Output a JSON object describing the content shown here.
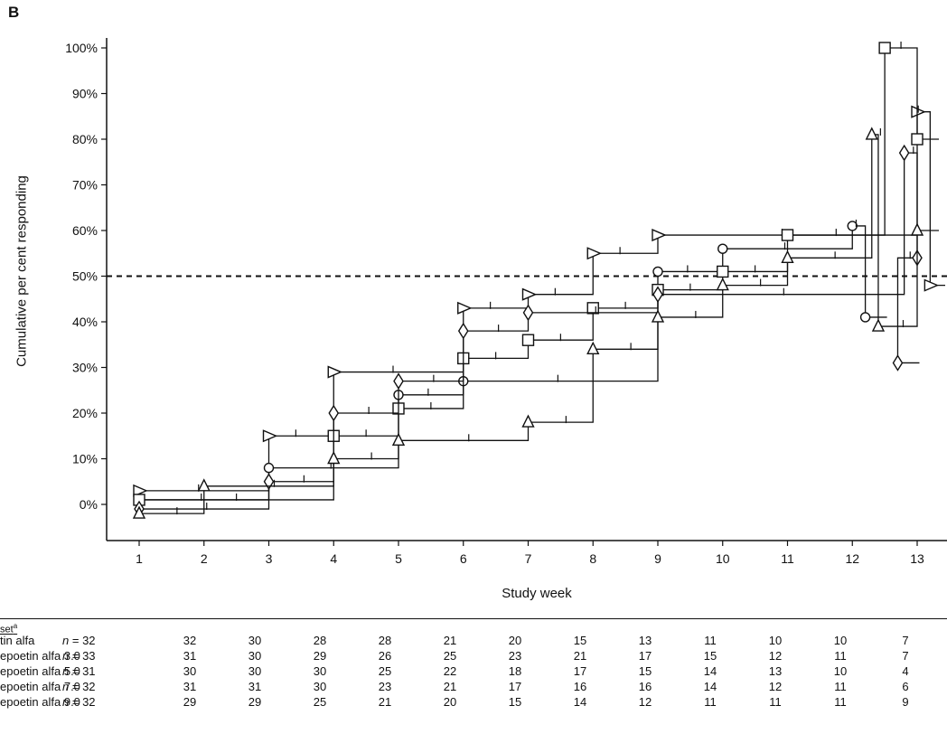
{
  "panel_label": "B",
  "chart_data": {
    "type": "line",
    "step": true,
    "xlabel": "Study week",
    "ylabel": "Cumulative per cent responding",
    "x_ticks": [
      1,
      2,
      3,
      4,
      5,
      6,
      7,
      8,
      9,
      10,
      11,
      12,
      13
    ],
    "y_ticks": [
      "0%",
      "10%",
      "20%",
      "30%",
      "40%",
      "50%",
      "60%",
      "70%",
      "80%",
      "90%",
      "100%"
    ],
    "xlim": [
      0.5,
      13.5
    ],
    "ylim": [
      -8,
      103
    ],
    "reference_line": {
      "y": 50,
      "style": "dashed"
    },
    "series": [
      {
        "marker": "right-triangle",
        "x": [
          1,
          3,
          4,
          6,
          7,
          8,
          9,
          13,
          13.2
        ],
        "y": [
          3,
          15,
          29,
          43,
          46,
          55,
          59,
          86,
          48
        ]
      },
      {
        "marker": "circle",
        "x": [
          1,
          3,
          5,
          6,
          9,
          10,
          12,
          12.2
        ],
        "y": [
          1,
          8,
          24,
          27,
          51,
          56,
          61,
          41
        ]
      },
      {
        "marker": "square",
        "x": [
          1,
          4,
          5,
          6,
          7,
          8,
          9,
          10,
          11,
          12.5,
          13
        ],
        "y": [
          1,
          15,
          21,
          32,
          36,
          43,
          47,
          51,
          59,
          100,
          80
        ]
      },
      {
        "marker": "diamond",
        "x": [
          1,
          3,
          4,
          5,
          6,
          7,
          9,
          12.8,
          13,
          12.7
        ],
        "y": [
          -1,
          5,
          20,
          27,
          38,
          42,
          46,
          77,
          54,
          31
        ]
      },
      {
        "marker": "triangle",
        "x": [
          1,
          2,
          4,
          5,
          7,
          8,
          9,
          10,
          11,
          12.3,
          12.4,
          13
        ],
        "y": [
          -2,
          4,
          10,
          14,
          18,
          34,
          41,
          48,
          54,
          81,
          39,
          60
        ]
      }
    ]
  },
  "risk_table": {
    "header": "set",
    "header_sup": "a",
    "rows": [
      {
        "label": "tin alfa",
        "n": "= 32",
        "values": [
          "32",
          "30",
          "28",
          "28",
          "21",
          "20",
          "15",
          "13",
          "11",
          "10",
          "10",
          "7"
        ]
      },
      {
        "label": "epoetin alfa 3.0",
        "n": "= 33",
        "values": [
          "31",
          "30",
          "29",
          "26",
          "25",
          "23",
          "21",
          "17",
          "15",
          "12",
          "11",
          "7"
        ]
      },
      {
        "label": "epoetin alfa 5.0",
        "n": "= 31",
        "values": [
          "30",
          "30",
          "30",
          "25",
          "22",
          "18",
          "17",
          "15",
          "14",
          "13",
          "10",
          "4"
        ]
      },
      {
        "label": "epoetin alfa 7.0",
        "n": "= 32",
        "values": [
          "31",
          "31",
          "30",
          "23",
          "21",
          "17",
          "16",
          "16",
          "14",
          "12",
          "11",
          "6"
        ]
      },
      {
        "label": "epoetin alfa 9.0",
        "n": "= 32",
        "values": [
          "29",
          "29",
          "25",
          "21",
          "20",
          "15",
          "14",
          "12",
          "11",
          "11",
          "11",
          "9"
        ]
      }
    ]
  }
}
